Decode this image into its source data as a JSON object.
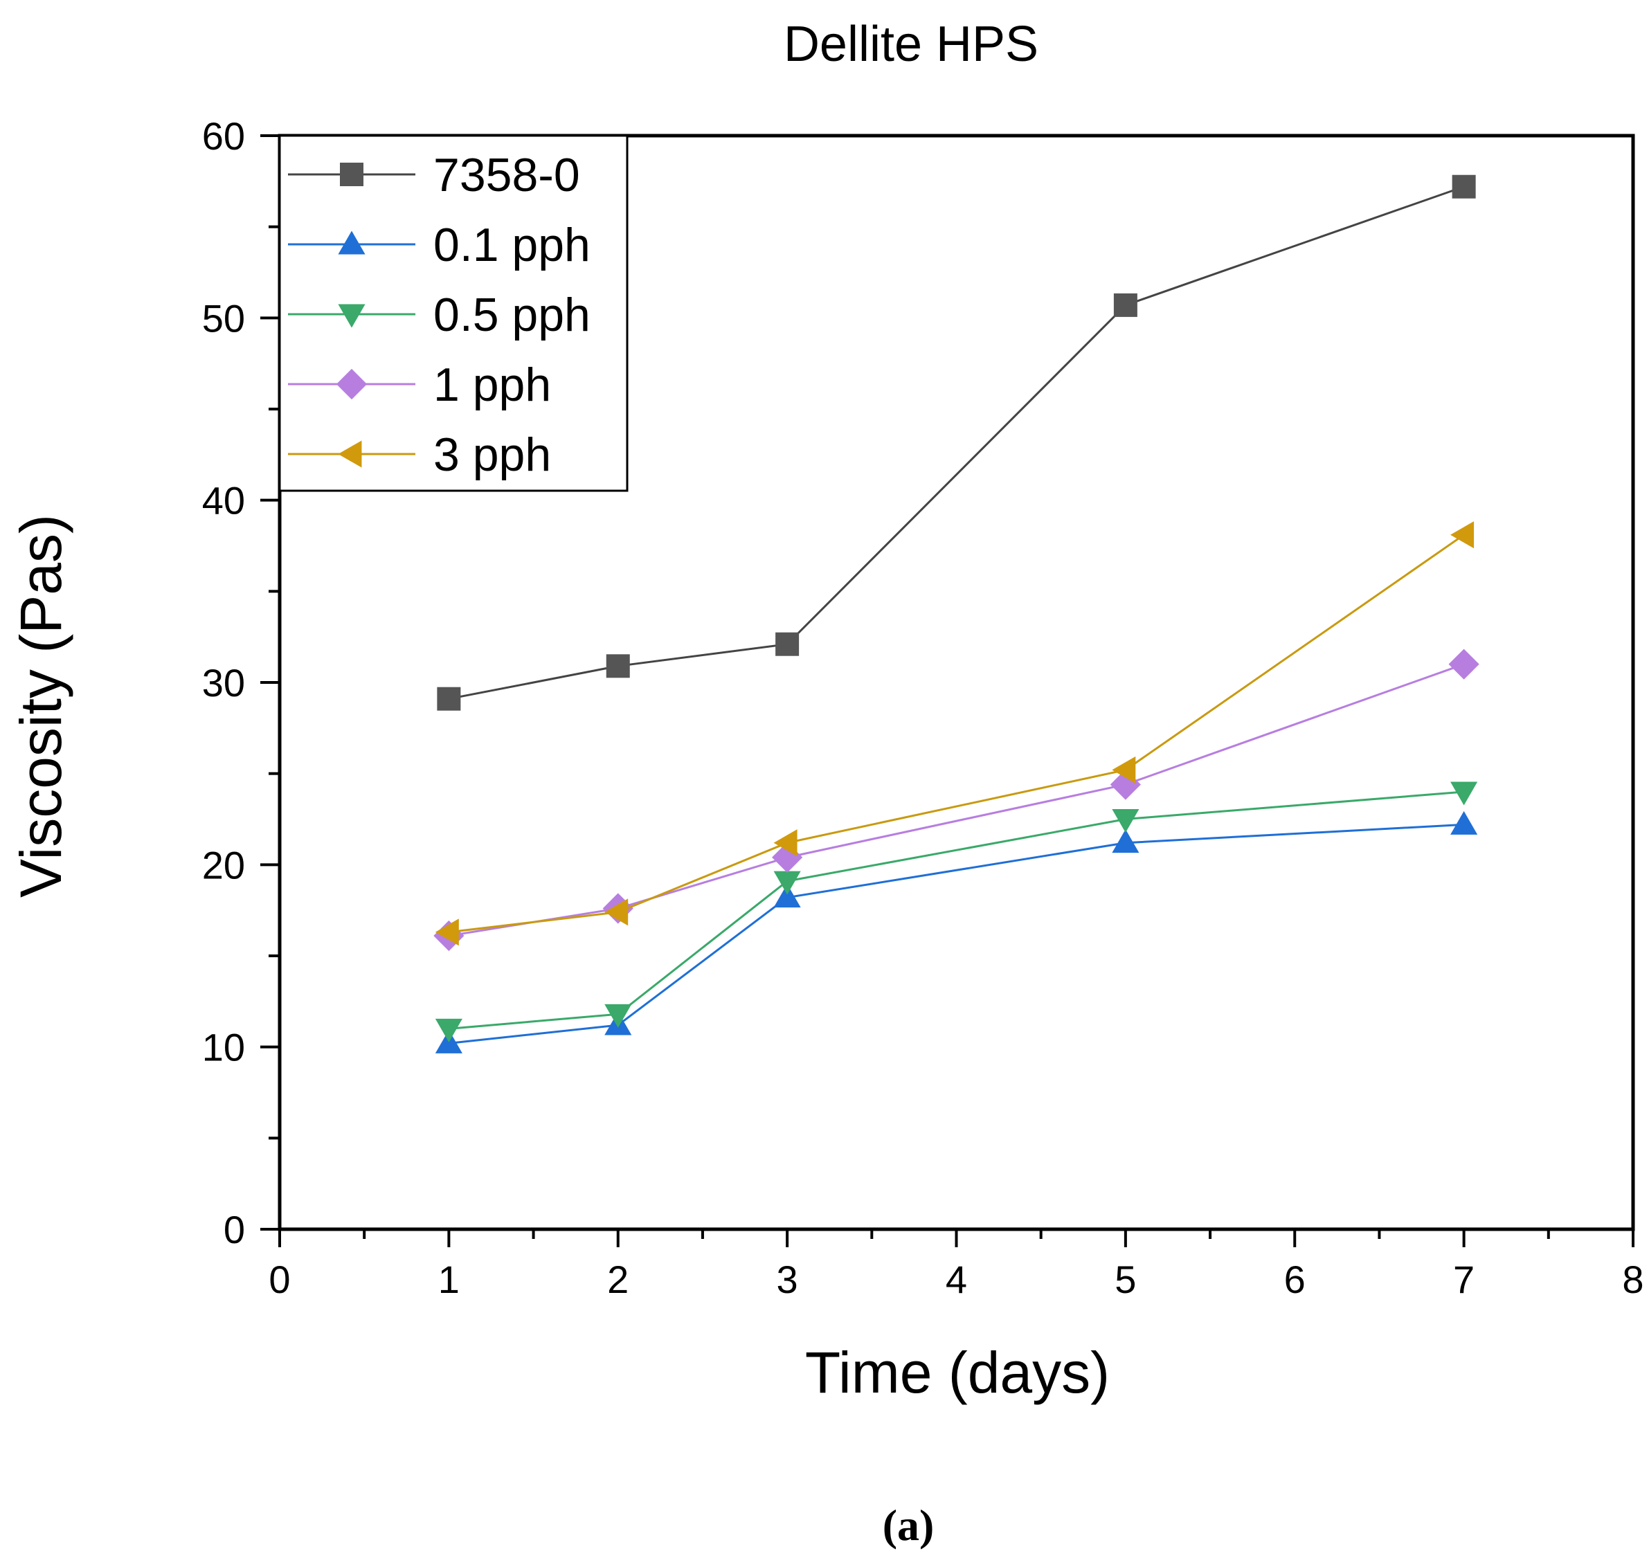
{
  "chart_data": {
    "type": "line",
    "title": "Dellite HPS",
    "xlabel": "Time (days)",
    "ylabel": "Viscosity (Pas)",
    "xlim": [
      0,
      8
    ],
    "ylim": [
      0,
      60
    ],
    "x_ticks": [
      0,
      1,
      2,
      3,
      4,
      5,
      6,
      7,
      8
    ],
    "y_ticks": [
      0,
      10,
      20,
      30,
      40,
      50,
      60
    ],
    "x_minor_step": 0.5,
    "y_minor_step": 5,
    "x": [
      1,
      2,
      3,
      5,
      7
    ],
    "legend_position": "top-left",
    "grid": false,
    "series": [
      {
        "name": "7358-0",
        "marker": "square",
        "color": "#555555",
        "line_color": "#444444",
        "values": [
          29.1,
          30.9,
          32.1,
          50.7,
          57.2
        ]
      },
      {
        "name": "0.1 pph",
        "marker": "triangle-up",
        "color": "#1f6fd6",
        "line_color": "#1f6fd6",
        "values": [
          10.2,
          11.2,
          18.2,
          21.2,
          22.2
        ]
      },
      {
        "name": "0.5 pph",
        "marker": "triangle-down",
        "color": "#3aa96a",
        "line_color": "#3aa96a",
        "values": [
          11.0,
          11.8,
          19.1,
          22.5,
          24.0
        ]
      },
      {
        "name": "1 pph",
        "marker": "diamond",
        "color": "#b77ee0",
        "line_color": "#b77ee0",
        "values": [
          16.1,
          17.6,
          20.4,
          24.4,
          31.0
        ]
      },
      {
        "name": "3 pph",
        "marker": "triangle-left",
        "color": "#d19a0c",
        "line_color": "#c99a10",
        "values": [
          16.3,
          17.4,
          21.2,
          25.2,
          38.1
        ]
      }
    ]
  },
  "caption": "(a)"
}
